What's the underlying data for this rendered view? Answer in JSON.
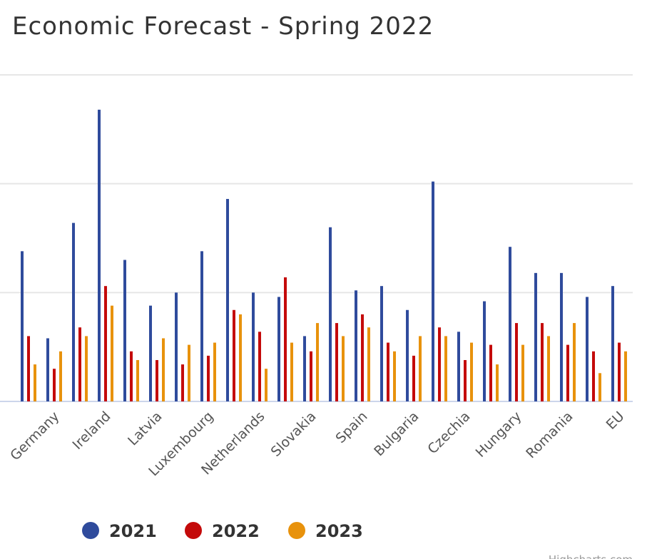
{
  "chart_data": {
    "type": "bar",
    "title": "Economic Forecast - Spring 2022",
    "credits": "Highcharts.com",
    "categories": [
      null,
      "Germany",
      null,
      "Ireland",
      null,
      "Latvia",
      null,
      "Luxembourg",
      null,
      "Netherlands",
      null,
      "Slovakia",
      null,
      "Spain",
      null,
      "Bulgaria",
      null,
      "Czechia",
      null,
      "Hungary",
      null,
      "Romania",
      null,
      "EU"
    ],
    "series": [
      {
        "name": "2021",
        "color": "#2f4b9c",
        "values": [
          6.9,
          2.9,
          8.2,
          13.4,
          6.5,
          4.4,
          5.0,
          6.9,
          9.3,
          5.0,
          4.8,
          3.0,
          8.0,
          5.1,
          5.3,
          4.2,
          10.1,
          3.2,
          4.6,
          7.1,
          5.9,
          5.9,
          4.8,
          5.3
        ]
      },
      {
        "name": "2022",
        "color": "#c40a0a",
        "values": [
          3.0,
          1.5,
          3.4,
          5.3,
          2.3,
          1.9,
          1.7,
          2.1,
          4.2,
          3.2,
          5.7,
          2.3,
          3.6,
          4.0,
          2.7,
          2.1,
          3.4,
          1.9,
          2.6,
          3.6,
          3.6,
          2.6,
          2.3,
          2.7
        ]
      },
      {
        "name": "2023",
        "color": "#e8920c",
        "values": [
          1.7,
          2.3,
          3.0,
          4.4,
          1.9,
          2.9,
          2.6,
          2.7,
          4.0,
          1.5,
          2.7,
          3.6,
          3.0,
          3.4,
          2.3,
          3.0,
          3.0,
          2.7,
          1.7,
          2.6,
          3.0,
          3.6,
          1.3,
          2.3
        ]
      }
    ],
    "ylim": [
      0,
      15
    ],
    "yticks": [
      0,
      5,
      10,
      15
    ],
    "grid": true
  }
}
